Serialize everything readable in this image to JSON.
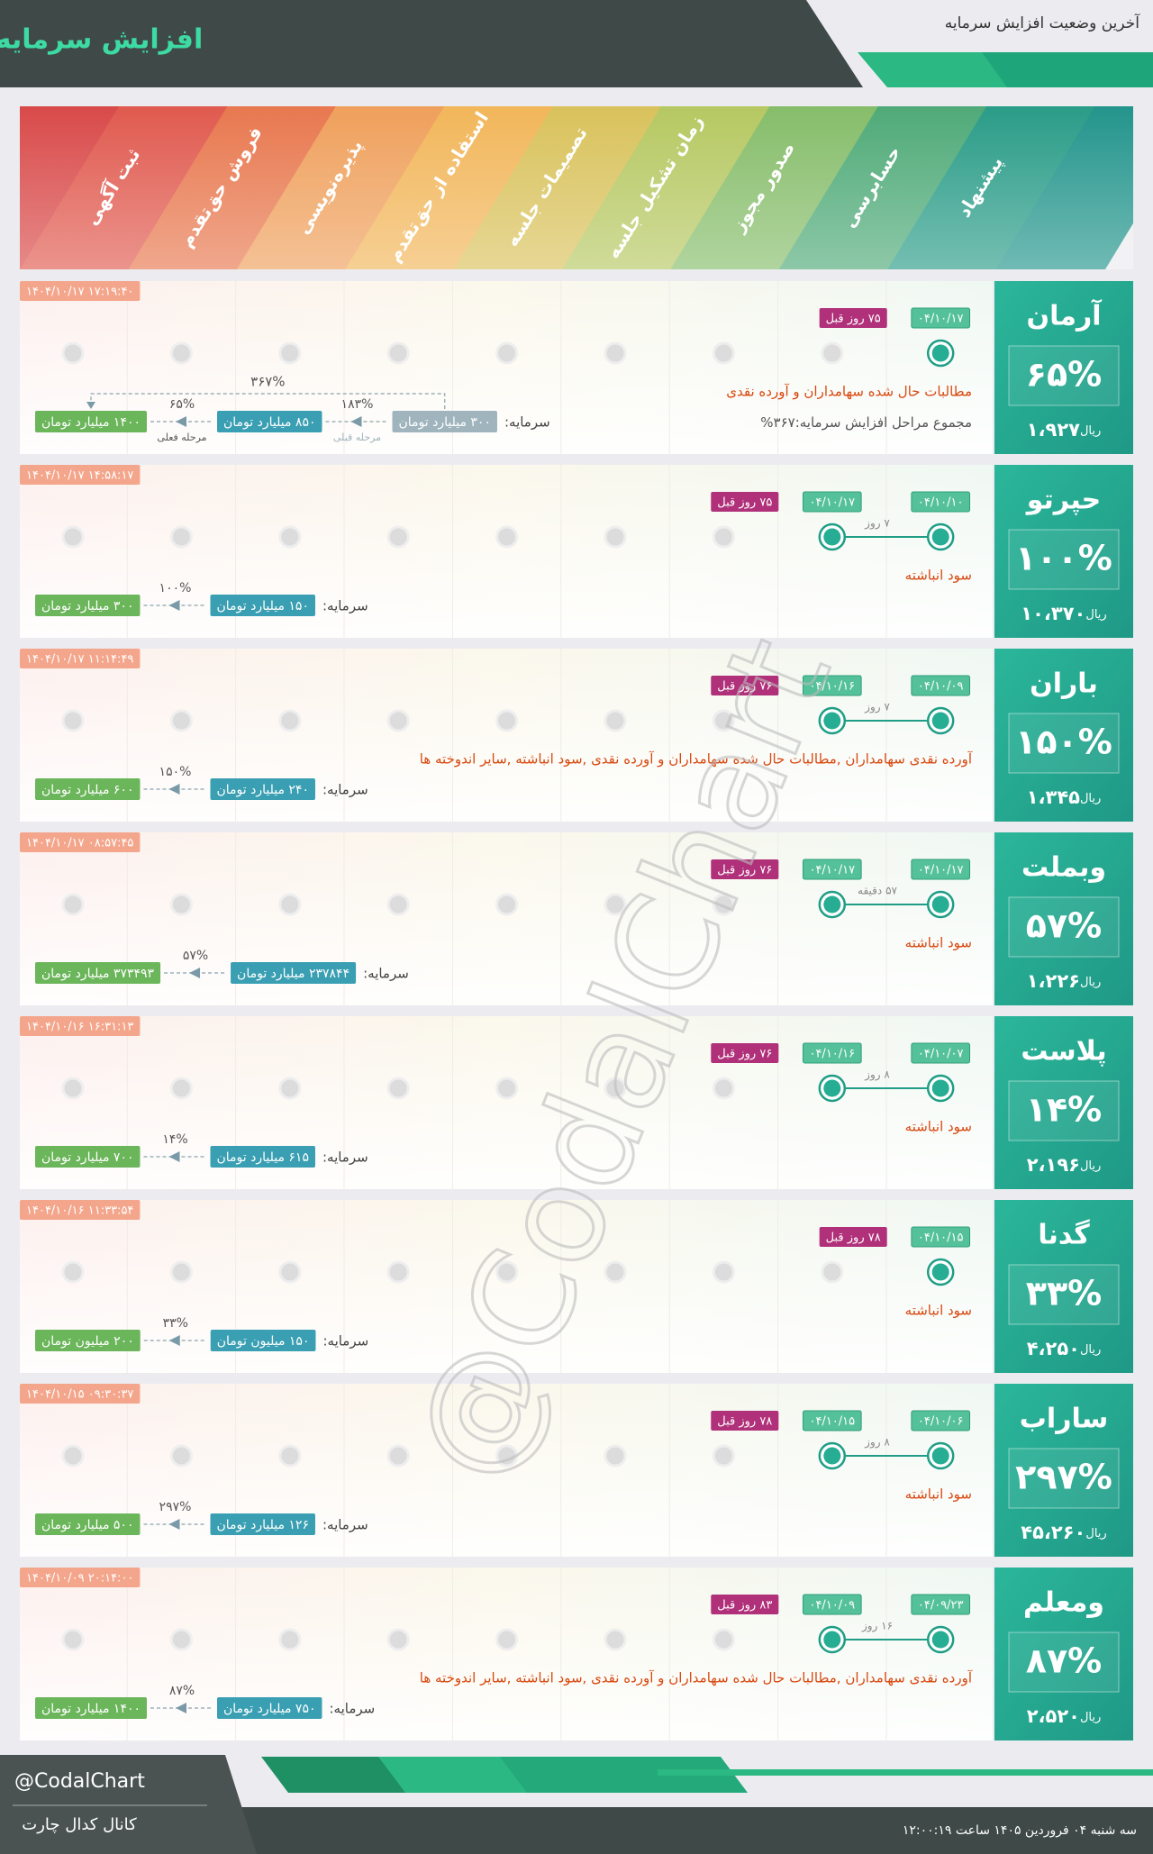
{
  "header": {
    "title": "افزایش سرمایه",
    "subtitle": "آخرین وضعیت افزایش سرمایه"
  },
  "stages": [
    "ثبت آگهی",
    "فروش حق‌تقدم",
    "پذیره‌نویسی",
    "استفاده از حق‌تقدم",
    "تصمیمات جلسه",
    "زمان تشکیل جلسه",
    "صدور مجوز",
    "حسابرسی",
    "پیشنهاد"
  ],
  "labels": {
    "capital": "سرمایه:",
    "price_unit": "ریال",
    "previous_stage": "مرحله قبلی",
    "current_stage": "مرحله فعلی",
    "total_steps": "مجموع مراحل افزایش سرمایه:"
  },
  "companies": [
    {
      "symbol": "آرمان",
      "percent": "۶۵%",
      "price": "۱،۹۲۷",
      "timestamp": "۱۴۰۴/۱۰/۱۷ ۱۷:۱۹:۴۰",
      "proposal_date": "۰۴/۱۰/۱۷",
      "days_ago": "۷۵ روز قبل",
      "source": "مطالبات حال شده سهامداران و آورده نقدی",
      "capital": [
        "۳۰۰ میلیارد تومان",
        "۸۵۰ میلیارد تومان",
        "۱۴۰۰ میلیارد تومان"
      ],
      "steps": [
        "۱۸۳%",
        "۶۵%"
      ],
      "total": "۳۶۷%"
    },
    {
      "symbol": "حپرتو",
      "percent": "۱۰۰%",
      "price": "۱۰،۳۷۰",
      "timestamp": "۱۴۰۴/۱۰/۱۷ ۱۴:۵۸:۱۷",
      "proposal_date": "۰۴/۱۰/۱۰",
      "audit_date": "۰۴/۱۰/۱۷",
      "days_ago": "۷۵ روز قبل",
      "gap": "۷ روز",
      "source": "سود انباشته",
      "capital": [
        "۱۵۰ میلیارد تومان",
        "۳۰۰ میلیارد تومان"
      ],
      "steps": [
        "۱۰۰%"
      ]
    },
    {
      "symbol": "باران",
      "percent": "۱۵۰%",
      "price": "۱،۳۴۵",
      "timestamp": "۱۴۰۴/۱۰/۱۷ ۱۱:۱۴:۴۹",
      "proposal_date": "۰۴/۱۰/۰۹",
      "audit_date": "۰۴/۱۰/۱۶",
      "days_ago": "۷۶ روز قبل",
      "gap": "۷ روز",
      "source": "آورده نقدی سهامداران ,مطالبات حال شده سهامداران و آورده نقدی ,سود انباشته ,سایر اندوخته ها",
      "capital": [
        "۲۴۰ میلیارد تومان",
        "۶۰۰ میلیارد تومان"
      ],
      "steps": [
        "۱۵۰%"
      ]
    },
    {
      "symbol": "وبملت",
      "percent": "۵۷%",
      "price": "۱،۲۲۶",
      "timestamp": "۱۴۰۴/۱۰/۱۷ ۰۸:۵۷:۴۵",
      "proposal_date": "۰۴/۱۰/۱۷",
      "audit_date": "۰۴/۱۰/۱۷",
      "days_ago": "۷۶ روز قبل",
      "gap": "۵۷ دقیقه",
      "source": "سود انباشته",
      "capital": [
        "۲۳۷۸۴۴ میلیارد تومان",
        "۳۷۳۴۹۳ میلیارد تومان"
      ],
      "steps": [
        "۵۷%"
      ]
    },
    {
      "symbol": "پلاست",
      "percent": "۱۴%",
      "price": "۲،۱۹۶",
      "timestamp": "۱۴۰۴/۱۰/۱۶ ۱۶:۳۱:۱۳",
      "proposal_date": "۰۴/۱۰/۰۷",
      "audit_date": "۰۴/۱۰/۱۶",
      "days_ago": "۷۶ روز قبل",
      "gap": "۸ روز",
      "source": "سود انباشته",
      "capital": [
        "۶۱۵ میلیارد تومان",
        "۷۰۰ میلیارد تومان"
      ],
      "steps": [
        "۱۴%"
      ]
    },
    {
      "symbol": "گدنا",
      "percent": "۳۳%",
      "price": "۴،۲۵۰",
      "timestamp": "۱۴۰۴/۱۰/۱۶ ۱۱:۳۳:۵۴",
      "proposal_date": "۰۴/۱۰/۱۵",
      "days_ago": "۷۸ روز قبل",
      "source": "سود انباشته",
      "capital": [
        "۱۵۰ میلیون تومان",
        "۲۰۰ میلیون تومان"
      ],
      "steps": [
        "۳۳%"
      ]
    },
    {
      "symbol": "ساراب",
      "percent": "۲۹۷%",
      "price": "۴۵،۲۶۰",
      "timestamp": "۱۴۰۴/۱۰/۱۵ ۰۹:۳۰:۳۷",
      "proposal_date": "۰۴/۱۰/۰۶",
      "audit_date": "۰۴/۱۰/۱۵",
      "days_ago": "۷۸ روز قبل",
      "gap": "۸ روز",
      "source": "سود انباشته",
      "capital": [
        "۱۲۶ میلیارد تومان",
        "۵۰۰ میلیارد تومان"
      ],
      "steps": [
        "۲۹۷%"
      ]
    },
    {
      "symbol": "ومعلم",
      "percent": "۸۷%",
      "price": "۲،۵۲۰",
      "timestamp": "۱۴۰۴/۱۰/۰۹ ۲۰:۱۴:۰۰",
      "proposal_date": "۰۴/۰۹/۲۳",
      "audit_date": "۰۴/۱۰/۰۹",
      "days_ago": "۸۳ روز قبل",
      "gap": "۱۶ روز",
      "source": "آورده نقدی سهامداران ,مطالبات حال شده سهامداران و آورده نقدی ,سود انباشته ,سایر اندوخته ها",
      "capital": [
        "۷۵۰ میلیارد تومان",
        "۱۴۰۰ میلیارد تومان"
      ],
      "steps": [
        "۸۷%"
      ]
    }
  ],
  "footer": {
    "handle": "@CodalChart",
    "channel": "کانال کدال چارت",
    "datetime": "سه شنبه ۰۴ فروردین ۱۴۰۵ ساعت ۱۲:۰۰:۱۹"
  }
}
